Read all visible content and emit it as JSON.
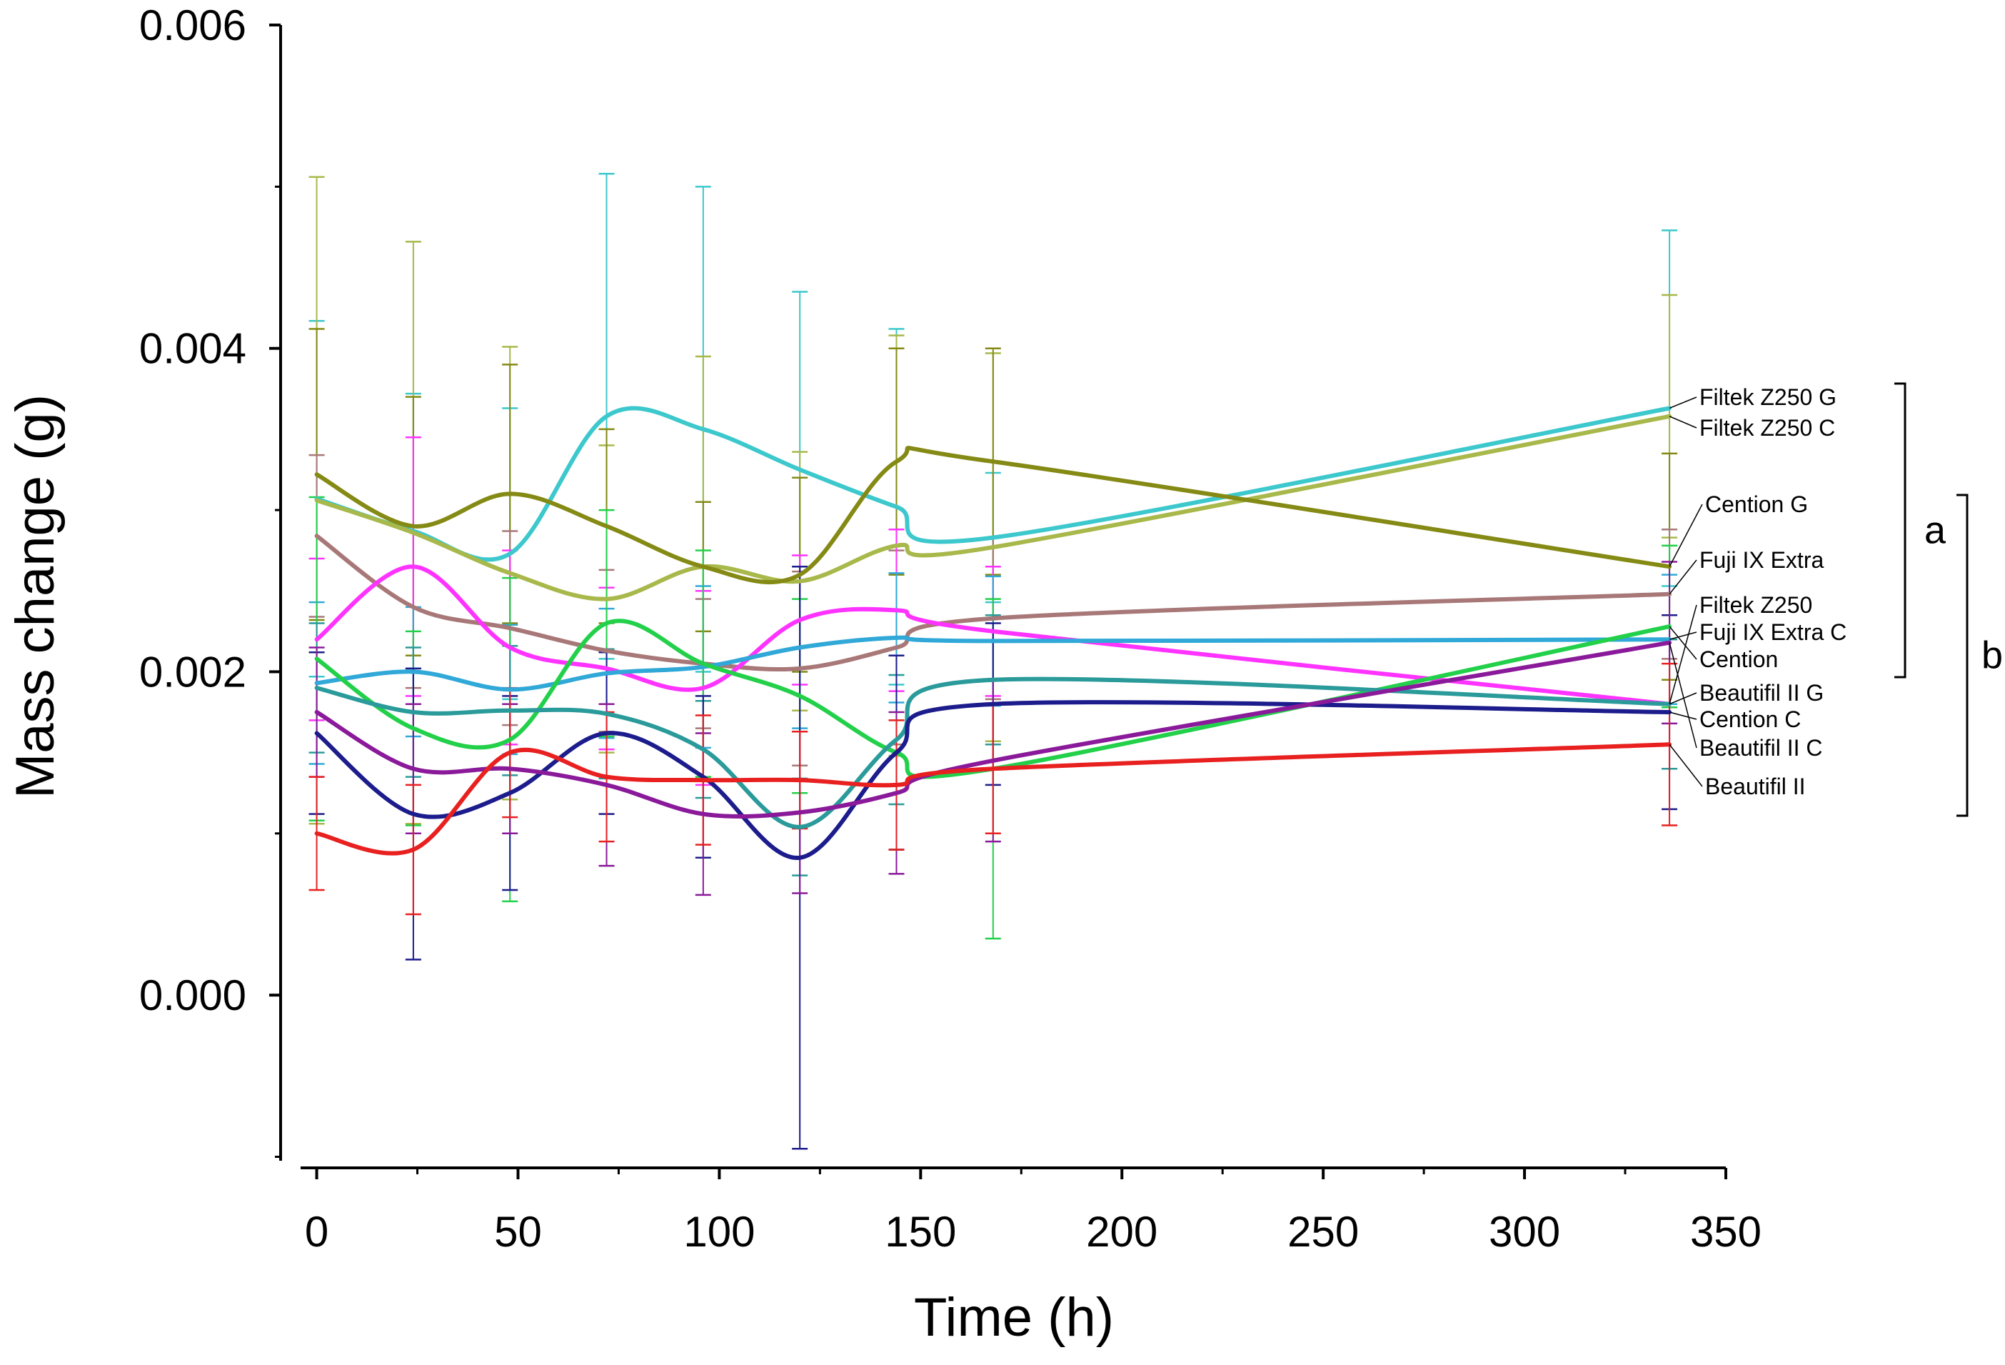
{
  "chart_data": {
    "type": "line",
    "title": "",
    "xlabel": "Time (h)",
    "ylabel": "Mass change (g)",
    "xlim": [
      -4,
      350
    ],
    "ylim": [
      -0.00098,
      0.006
    ],
    "x_ticks": [
      0,
      50,
      100,
      150,
      200,
      250,
      300,
      350
    ],
    "x_tick_labels": [
      "0",
      "50",
      "100",
      "150",
      "200",
      "250",
      "300",
      "350"
    ],
    "y_ticks": [
      0.0,
      0.002,
      0.004,
      0.006
    ],
    "y_tick_labels": [
      "0.000",
      "0.002",
      "0.004",
      "0.006"
    ],
    "x": [
      0,
      24,
      48,
      72,
      96,
      120,
      144,
      168,
      336
    ],
    "series": [
      {
        "name": "Filtek Z250 G",
        "color": "#3cc8cc",
        "values": [
          0.00307,
          0.00287,
          0.00273,
          0.00358,
          0.0035,
          0.00325,
          0.00302,
          0.00283,
          0.00363
        ],
        "errors": [
          0.0011,
          0.00085,
          0.0009,
          0.0015,
          0.0015,
          0.0011,
          0.0011,
          0.0004,
          0.0011
        ]
      },
      {
        "name": "Filtek Z250 C",
        "color": "#a8b84a",
        "values": [
          0.00306,
          0.00286,
          0.00261,
          0.00245,
          0.00265,
          0.00256,
          0.00278,
          0.00277,
          0.00358
        ],
        "errors": [
          0.002,
          0.0018,
          0.0014,
          0.00095,
          0.0013,
          0.0008,
          0.0013,
          0.0012,
          0.00075
        ]
      },
      {
        "name": "Cention G",
        "color": "#848a14",
        "values": [
          0.00322,
          0.0029,
          0.0031,
          0.0029,
          0.00265,
          0.0026,
          0.0033,
          0.0033,
          0.00265
        ],
        "errors": [
          0.0009,
          0.0008,
          0.0008,
          0.0006,
          0.0004,
          0.0006,
          0.0007,
          0.0007,
          0.0007
        ]
      },
      {
        "name": "Fuji IX Extra",
        "color": "#a87878",
        "values": [
          0.00284,
          0.0024,
          0.00227,
          0.00213,
          0.00205,
          0.00202,
          0.00215,
          0.00233,
          0.00248
        ],
        "errors": [
          0.0005,
          0.0005,
          0.0006,
          0.0005,
          0.0004,
          0.0006,
          0.0006,
          0.0005,
          0.0004
        ]
      },
      {
        "name": "Filtek Z250",
        "color": "#ff33ff",
        "values": [
          0.0022,
          0.00265,
          0.00215,
          0.00202,
          0.0019,
          0.00232,
          0.00238,
          0.00225,
          0.0018
        ],
        "errors": [
          0.0005,
          0.0008,
          0.0006,
          0.0005,
          0.0006,
          0.0004,
          0.0005,
          0.0004,
          0.0004
        ]
      },
      {
        "name": "Fuji IX Extra C",
        "color": "#30a8d8",
        "values": [
          0.00193,
          0.002,
          0.00189,
          0.00199,
          0.00203,
          0.00215,
          0.00221,
          0.00219,
          0.0022
        ],
        "errors": [
          0.0005,
          0.0004,
          0.0004,
          0.0004,
          0.0005,
          0.0005,
          0.0004,
          0.0004,
          0.0004
        ]
      },
      {
        "name": "Cention",
        "color": "#22d04a",
        "values": [
          0.00208,
          0.00165,
          0.00158,
          0.0023,
          0.00205,
          0.00185,
          0.0015,
          0.0014,
          0.00228
        ],
        "errors": [
          0.001,
          0.0006,
          0.001,
          0.0007,
          0.0007,
          0.0006,
          0.0006,
          0.00105,
          0.0005
        ]
      },
      {
        "name": "Beautifil II G",
        "color": "#2a9a9a",
        "values": [
          0.0019,
          0.00175,
          0.00176,
          0.00174,
          0.00152,
          0.00104,
          0.00158,
          0.00195,
          0.0018
        ],
        "errors": [
          0.0004,
          0.0004,
          0.0004,
          0.0004,
          0.0003,
          0.0003,
          0.0004,
          0.0004,
          0.0004
        ]
      },
      {
        "name": "Cention C",
        "color": "#1c1c8c",
        "values": [
          0.00162,
          0.00112,
          0.00125,
          0.00162,
          0.00135,
          0.00085,
          0.0015,
          0.0018,
          0.00175
        ],
        "errors": [
          0.0005,
          0.0009,
          0.0006,
          0.0005,
          0.0005,
          0.0018,
          0.0006,
          0.0005,
          0.0006
        ]
      },
      {
        "name": "Beautifil II C",
        "color": "#8a1a9a",
        "values": [
          0.00175,
          0.0014,
          0.0014,
          0.0013,
          0.00112,
          0.00113,
          0.00125,
          0.00145,
          0.00218
        ],
        "errors": [
          0.0004,
          0.0004,
          0.0004,
          0.0005,
          0.0005,
          0.0005,
          0.0005,
          0.0005,
          0.0005
        ]
      },
      {
        "name": "Beautifil II",
        "color": "#e82020",
        "values": [
          0.001,
          0.0009,
          0.0015,
          0.00135,
          0.00133,
          0.00133,
          0.0013,
          0.0014,
          0.00155
        ],
        "errors": [
          0.00035,
          0.0004,
          0.0004,
          0.0004,
          0.0004,
          0.0003,
          0.0004,
          0.0004,
          0.0005
        ]
      }
    ],
    "legend": [
      "Filtek Z250 G",
      "Filtek Z250 C",
      "Cention G",
      "Fuji IX Extra",
      "Filtek Z250",
      "Fuji IX Extra C",
      "Cention",
      "Beautifil II G",
      "Cention C",
      "Beautifil II C",
      "Beautifil II"
    ],
    "group_brackets": [
      {
        "label": "a",
        "from": "Filtek Z250 G",
        "to": "Cention"
      },
      {
        "label": "b",
        "from": "Cention G",
        "to": "Beautifil II"
      }
    ]
  }
}
